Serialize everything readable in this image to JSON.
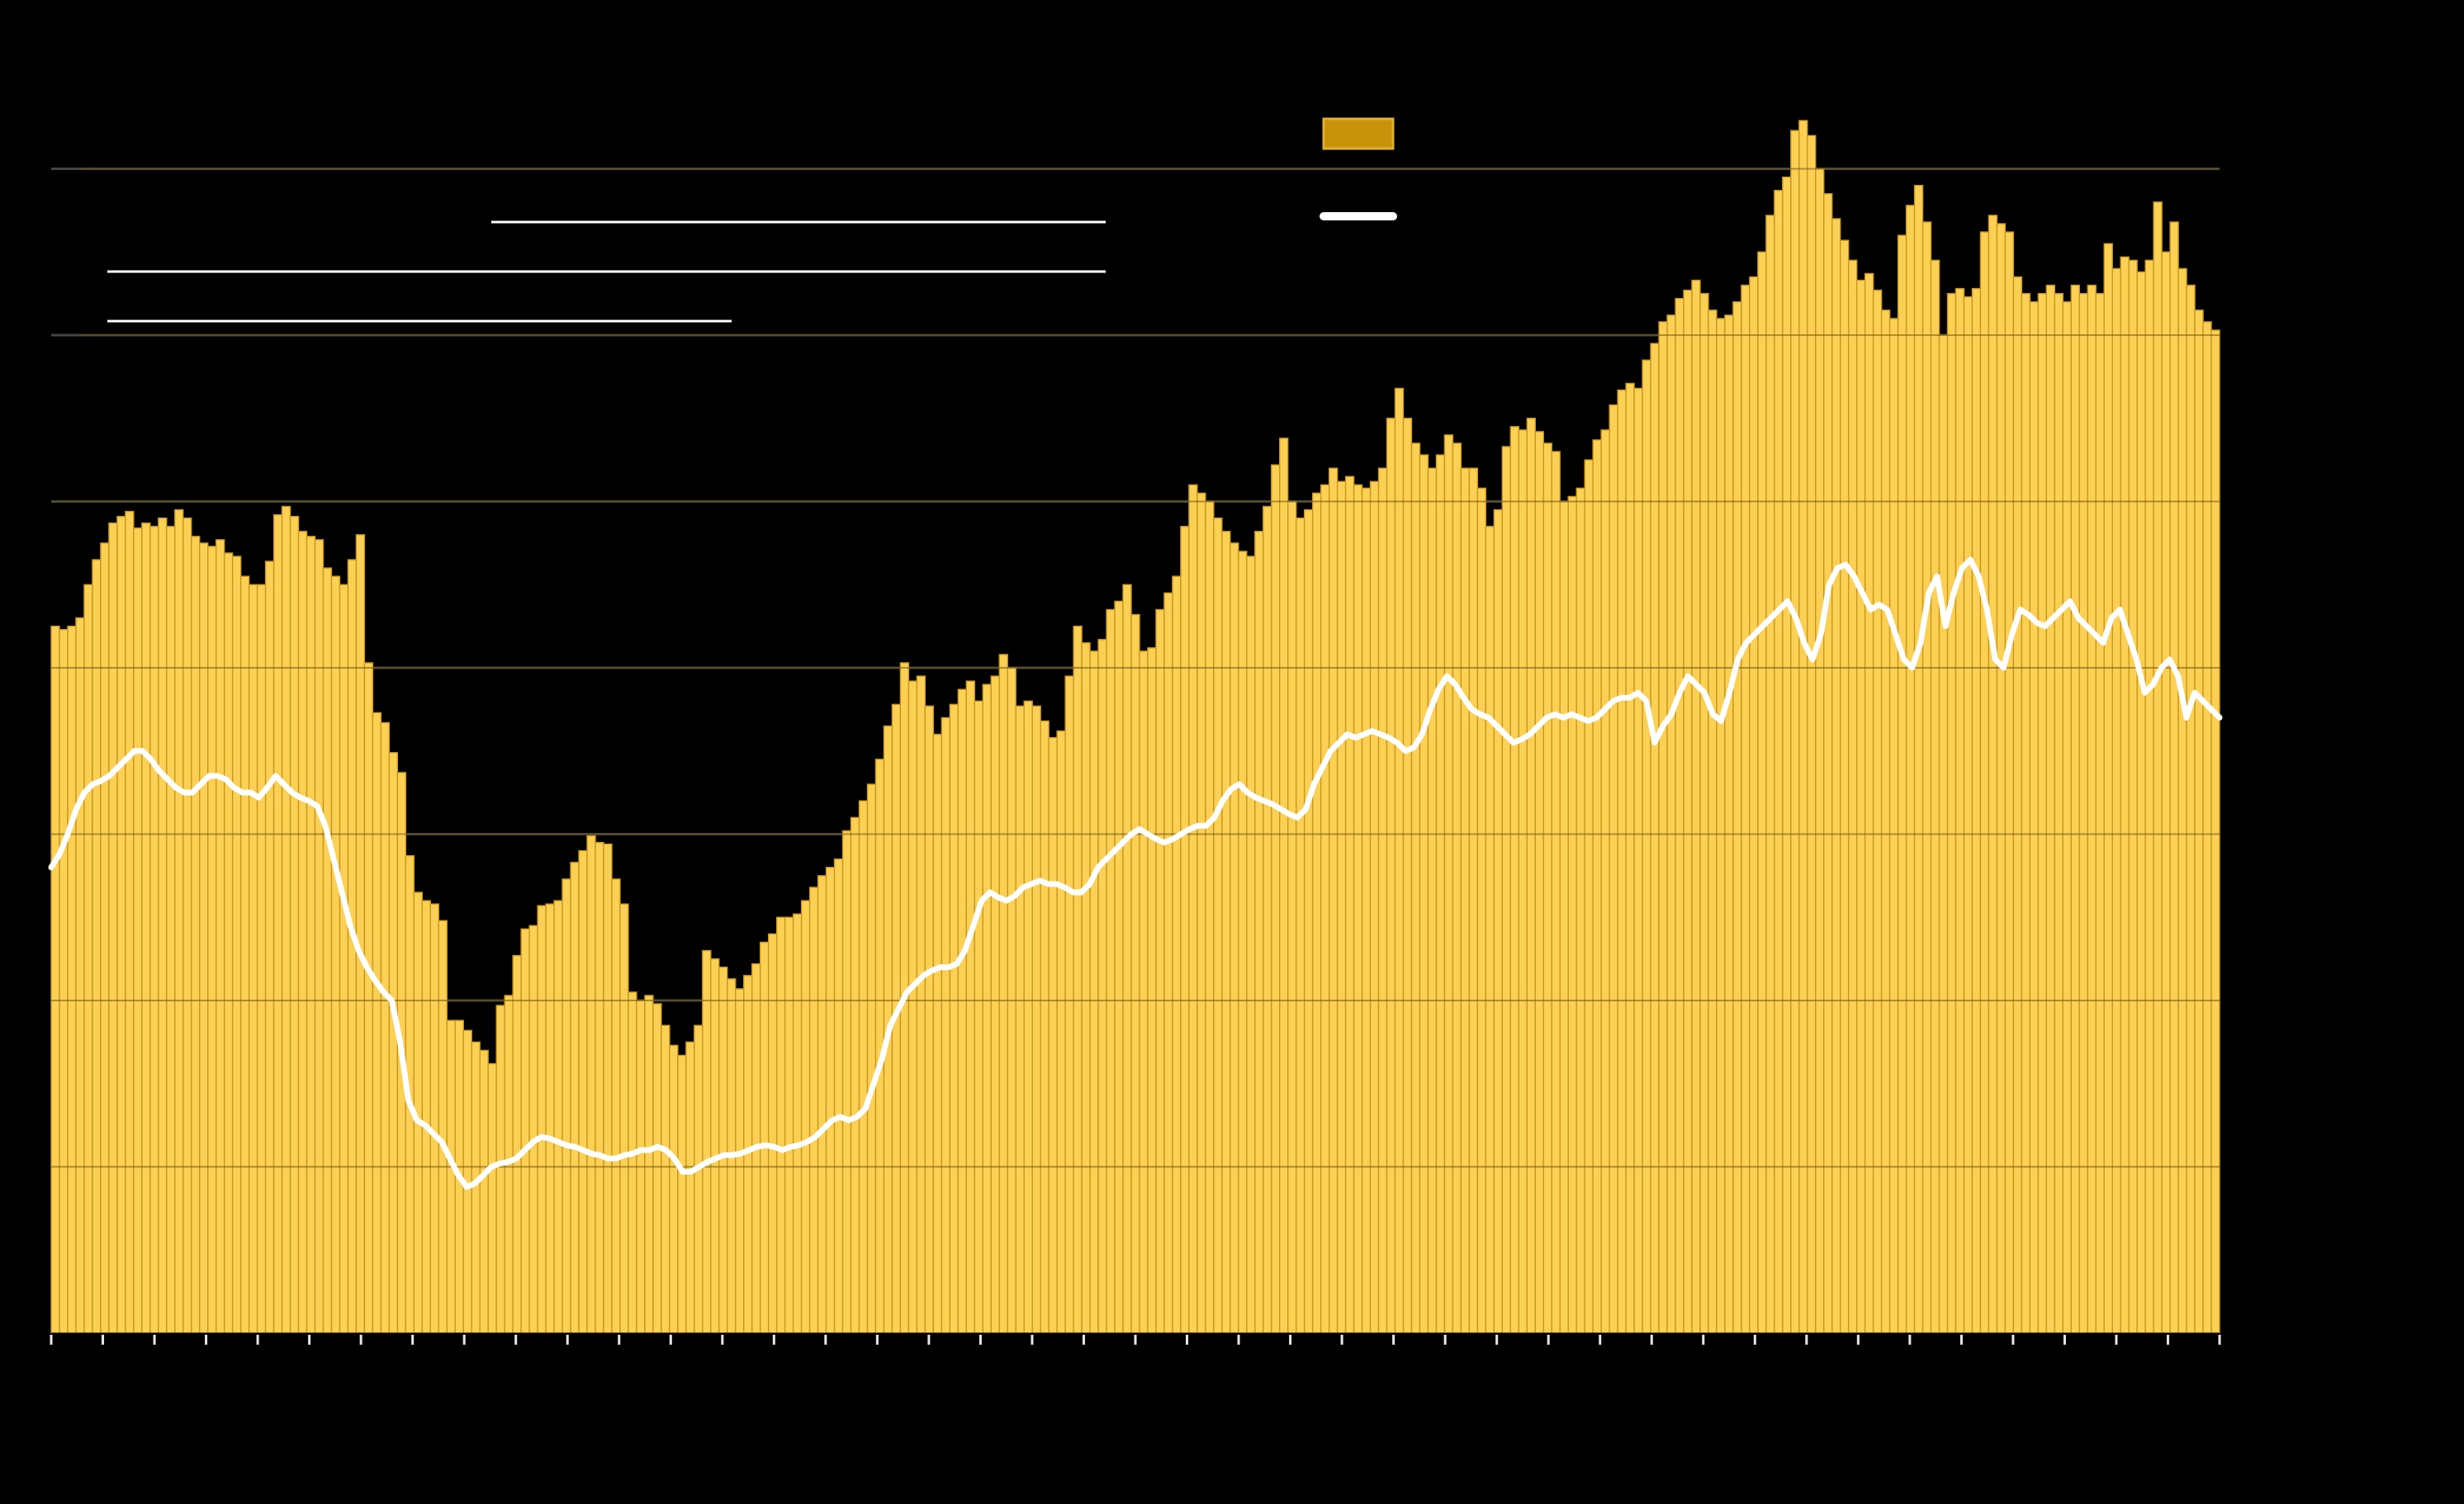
{
  "colors": {
    "background": "#000000",
    "bar_fill": "#fcd055",
    "bar_outline": "#c9971a",
    "line": "#ffffff",
    "grid": "#444444",
    "annotation": "#ffffff",
    "legend_swatch": "#c8920a"
  },
  "chart_data": {
    "type": "bar",
    "title": "",
    "xlabel": "",
    "ylabel": "",
    "grid": true,
    "legend": "top-right",
    "ylim": [
      0,
      7.5
    ],
    "series": [
      {
        "type": "bar",
        "values": [
          4.25,
          4.23,
          4.25,
          4.3,
          4.5,
          4.65,
          4.75,
          4.87,
          4.91,
          4.94,
          4.84,
          4.87,
          4.85,
          4.9,
          4.85,
          4.95,
          4.9,
          4.79,
          4.75,
          4.73,
          4.77,
          4.69,
          4.67,
          4.55,
          4.5,
          4.5,
          4.64,
          4.92,
          4.97,
          4.91,
          4.82,
          4.79,
          4.77,
          4.6,
          4.55,
          4.5,
          4.65,
          4.8,
          4.03,
          3.73,
          3.67,
          3.49,
          3.37,
          2.87,
          2.65,
          2.6,
          2.58,
          2.48,
          1.88,
          1.88,
          1.82,
          1.75,
          1.7,
          1.62,
          1.97,
          2.03,
          2.27,
          2.43,
          2.45,
          2.57,
          2.58,
          2.6,
          2.73,
          2.83,
          2.9,
          2.99,
          2.95,
          2.94,
          2.73,
          2.58,
          2.05,
          2.0,
          2.03,
          1.98,
          1.85,
          1.73,
          1.67,
          1.75,
          1.85,
          2.3,
          2.25,
          2.2,
          2.13,
          2.07,
          2.15,
          2.22,
          2.35,
          2.4,
          2.5,
          2.5,
          2.52,
          2.6,
          2.68,
          2.75,
          2.8,
          2.85,
          3.02,
          3.1,
          3.2,
          3.3,
          3.45,
          3.65,
          3.78,
          4.03,
          3.92,
          3.95,
          3.77,
          3.6,
          3.7,
          3.78,
          3.87,
          3.92,
          3.8,
          3.9,
          3.95,
          4.08,
          4.0,
          3.77,
          3.8,
          3.77,
          3.68,
          3.58,
          3.62,
          3.95,
          4.25,
          4.15,
          4.1,
          4.17,
          4.35,
          4.4,
          4.5,
          4.32,
          4.1,
          4.12,
          4.35,
          4.45,
          4.55,
          4.85,
          5.1,
          5.05,
          5.0,
          4.9,
          4.82,
          4.75,
          4.7,
          4.67,
          4.82,
          4.97,
          5.22,
          5.38,
          5.0,
          4.9,
          4.95,
          5.05,
          5.1,
          5.2,
          5.12,
          5.15,
          5.1,
          5.08,
          5.12,
          5.2,
          5.5,
          5.68,
          5.5,
          5.35,
          5.28,
          5.2,
          5.28,
          5.4,
          5.35,
          5.2,
          5.2,
          5.08,
          4.85,
          4.95,
          5.33,
          5.45,
          5.43,
          5.5,
          5.42,
          5.35,
          5.3,
          5.0,
          5.03,
          5.08,
          5.25,
          5.37,
          5.43,
          5.58,
          5.67,
          5.71,
          5.68,
          5.85,
          5.95,
          6.08,
          6.12,
          6.22,
          6.27,
          6.33,
          6.25,
          6.15,
          6.1,
          6.12,
          6.2,
          6.3,
          6.35,
          6.5,
          6.72,
          6.87,
          6.95,
          7.23,
          7.29,
          7.2,
          7.0,
          6.85,
          6.7,
          6.57,
          6.45,
          6.33,
          6.37,
          6.27,
          6.15,
          6.1,
          6.6,
          6.78,
          6.9,
          6.68,
          6.45,
          6.0,
          6.25,
          6.28,
          6.23,
          6.28,
          6.62,
          6.72,
          6.67,
          6.62,
          6.35,
          6.25,
          6.2,
          6.25,
          6.3,
          6.25,
          6.2,
          6.3,
          6.25,
          6.3,
          6.25,
          6.55,
          6.4,
          6.47,
          6.45,
          6.38,
          6.45,
          6.8,
          6.5,
          6.68,
          6.4,
          6.3,
          6.15,
          6.08,
          6.03
        ]
      },
      {
        "type": "line",
        "values": [
          2.8,
          2.88,
          3.0,
          3.15,
          3.25,
          3.3,
          3.32,
          3.35,
          3.4,
          3.45,
          3.5,
          3.5,
          3.45,
          3.38,
          3.33,
          3.28,
          3.25,
          3.25,
          3.3,
          3.35,
          3.35,
          3.33,
          3.28,
          3.25,
          3.25,
          3.22,
          3.28,
          3.35,
          3.3,
          3.25,
          3.22,
          3.2,
          3.17,
          3.05,
          2.85,
          2.65,
          2.45,
          2.3,
          2.2,
          2.12,
          2.05,
          2.0,
          1.75,
          1.4,
          1.28,
          1.25,
          1.2,
          1.15,
          1.05,
          0.95,
          0.88,
          0.9,
          0.95,
          1.0,
          1.02,
          1.03,
          1.05,
          1.1,
          1.15,
          1.18,
          1.17,
          1.15,
          1.13,
          1.12,
          1.1,
          1.08,
          1.07,
          1.05,
          1.05,
          1.07,
          1.08,
          1.1,
          1.1,
          1.12,
          1.1,
          1.05,
          0.97,
          0.97,
          1.0,
          1.03,
          1.05,
          1.07,
          1.07,
          1.08,
          1.1,
          1.12,
          1.13,
          1.12,
          1.1,
          1.12,
          1.13,
          1.15,
          1.18,
          1.23,
          1.28,
          1.3,
          1.28,
          1.3,
          1.35,
          1.5,
          1.65,
          1.85,
          1.95,
          2.05,
          2.1,
          2.15,
          2.18,
          2.2,
          2.2,
          2.22,
          2.3,
          2.45,
          2.6,
          2.65,
          2.62,
          2.6,
          2.63,
          2.68,
          2.7,
          2.72,
          2.7,
          2.7,
          2.68,
          2.65,
          2.65,
          2.7,
          2.8,
          2.85,
          2.9,
          2.95,
          3.0,
          3.03,
          3.0,
          2.97,
          2.95,
          2.97,
          3.0,
          3.03,
          3.05,
          3.05,
          3.1,
          3.2,
          3.27,
          3.3,
          3.25,
          3.22,
          3.2,
          3.18,
          3.15,
          3.12,
          3.1,
          3.15,
          3.3,
          3.4,
          3.5,
          3.55,
          3.6,
          3.58,
          3.6,
          3.62,
          3.6,
          3.58,
          3.55,
          3.5,
          3.52,
          3.6,
          3.75,
          3.87,
          3.95,
          3.9,
          3.82,
          3.75,
          3.72,
          3.7,
          3.65,
          3.6,
          3.55,
          3.57,
          3.6,
          3.65,
          3.7,
          3.72,
          3.7,
          3.72,
          3.7,
          3.68,
          3.7,
          3.75,
          3.8,
          3.82,
          3.82,
          3.85,
          3.8,
          3.55,
          3.65,
          3.72,
          3.85,
          3.95,
          3.9,
          3.85,
          3.72,
          3.68,
          3.85,
          4.05,
          4.15,
          4.2,
          4.25,
          4.3,
          4.35,
          4.4,
          4.3,
          4.15,
          4.05,
          4.2,
          4.5,
          4.6,
          4.62,
          4.55,
          4.45,
          4.35,
          4.38,
          4.35,
          4.2,
          4.05,
          4.0,
          4.15,
          4.45,
          4.55,
          4.25,
          4.45,
          4.6,
          4.65,
          4.55,
          4.35,
          4.05,
          4.0,
          4.2,
          4.35,
          4.32,
          4.27,
          4.25,
          4.3,
          4.35,
          4.4,
          4.3,
          4.25,
          4.2,
          4.15,
          4.3,
          4.35,
          4.2,
          4.05,
          3.85,
          3.9,
          4.0,
          4.05,
          3.95,
          3.7,
          3.85,
          3.8,
          3.75,
          3.7
        ]
      }
    ]
  }
}
